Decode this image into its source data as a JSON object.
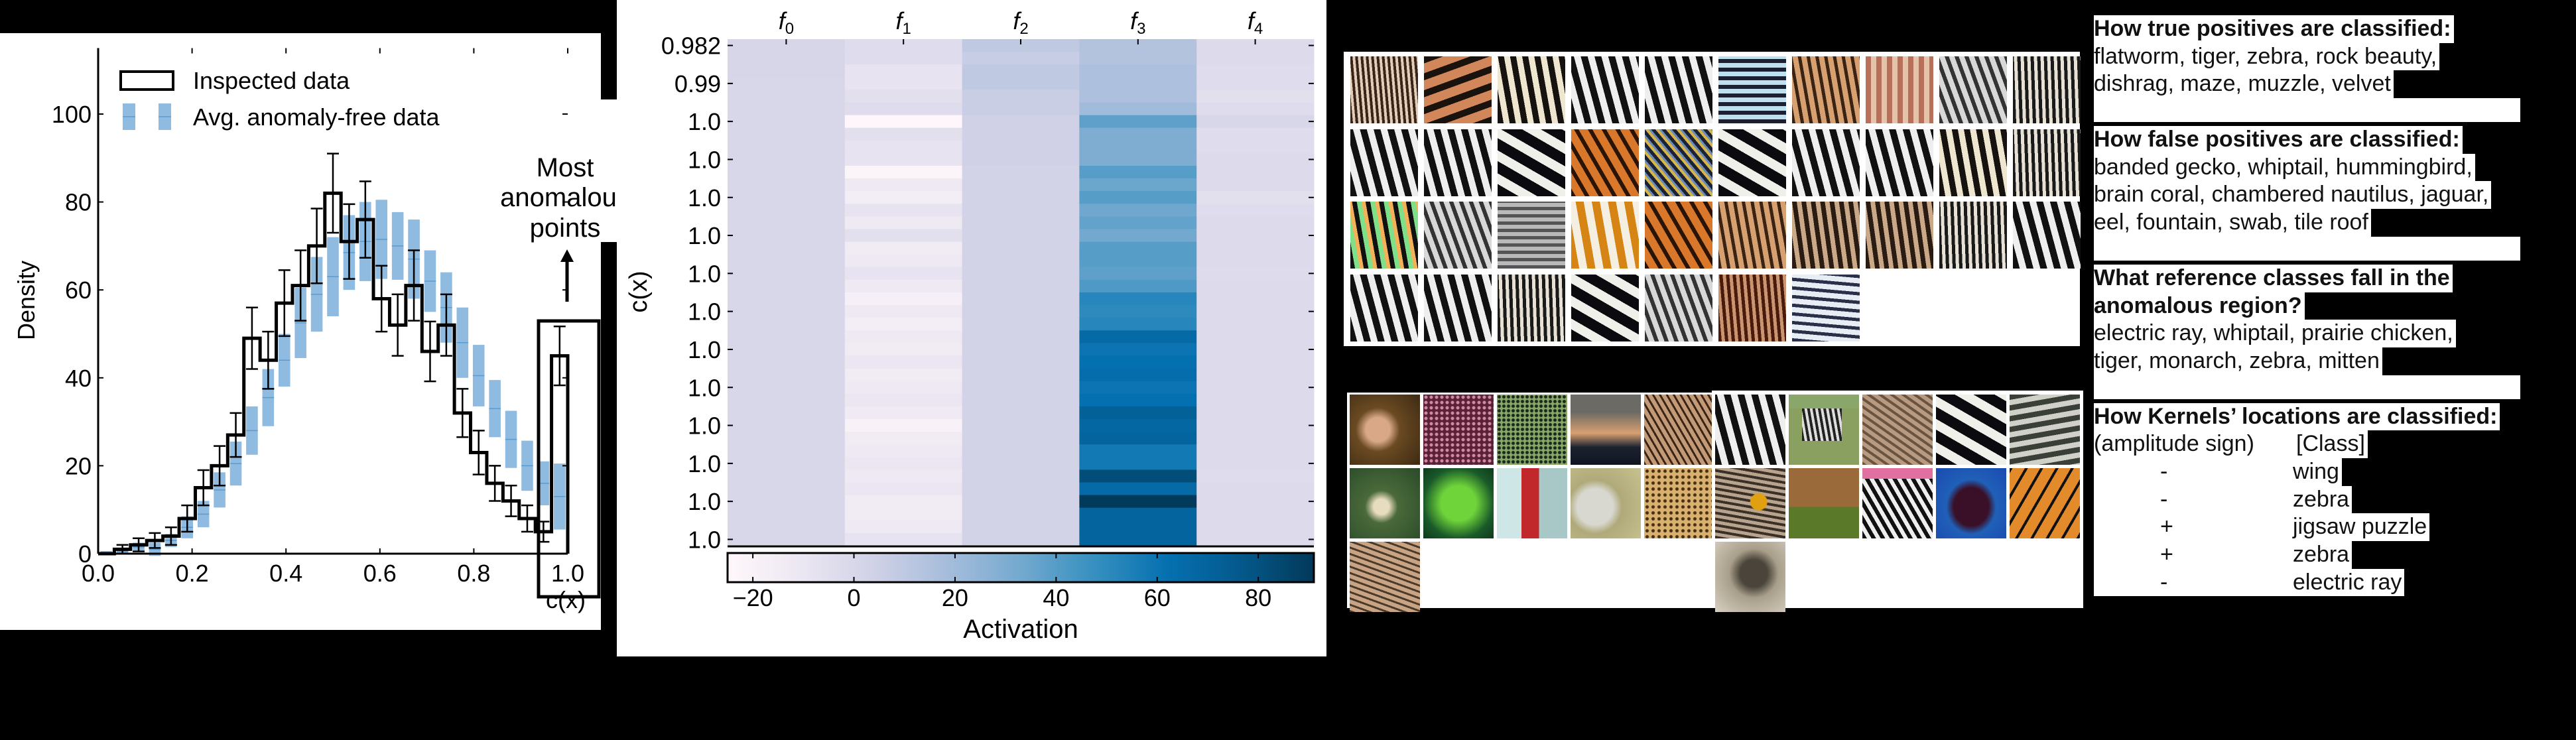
{
  "histogram": {
    "chart_data": {
      "type": "bar",
      "xlabel": "c(x)",
      "ylabel": "Density",
      "xlim": [
        0,
        1.0
      ],
      "ylim": [
        0,
        115
      ],
      "xticks": [
        "0.0",
        "0.2",
        "0.4",
        "0.6",
        "0.8",
        "1.0"
      ],
      "yticks": [
        "0",
        "20",
        "40",
        "60",
        "80",
        "100"
      ],
      "bins": 29,
      "legend_position": "top-left",
      "series": [
        {
          "name": "Inspected data",
          "style": "step",
          "color": "#000000",
          "values": [
            0,
            1,
            2,
            3,
            4,
            8,
            15,
            20,
            27,
            49,
            44,
            57,
            61,
            70,
            82,
            71,
            76,
            58,
            52,
            61,
            46,
            52,
            32,
            23,
            16,
            12,
            8,
            5,
            45
          ],
          "errors": [
            0,
            1,
            1.5,
            1.7,
            2,
            3,
            4,
            4.5,
            5,
            7,
            6.5,
            7.5,
            8,
            8.5,
            9,
            8.5,
            8.7,
            7.5,
            7,
            8,
            6.8,
            7,
            5.5,
            5,
            4,
            3.5,
            3,
            2.3,
            6.7
          ]
        },
        {
          "name": "Avg. anomaly-free data",
          "style": "band",
          "color": "#8fbbe0",
          "values": [
            0.3,
            0.5,
            1.5,
            1,
            3,
            6,
            9,
            14.5,
            20.5,
            28,
            35.5,
            44,
            52.5,
            59,
            63,
            68.5,
            71,
            71.5,
            70,
            67,
            62,
            56,
            48,
            40.5,
            33,
            26,
            20,
            16,
            13
          ],
          "errors": [
            0.3,
            0.5,
            1,
            1.5,
            1.5,
            2.5,
            3,
            4,
            5,
            5.5,
            6.5,
            6,
            8,
            8.5,
            9,
            8.5,
            9,
            9,
            7.7,
            9,
            7,
            8,
            8,
            7,
            6.5,
            6.5,
            5.7,
            5,
            7.5
          ]
        }
      ],
      "annotation": {
        "lines": [
          "Most",
          "anomalous",
          "points"
        ],
        "target_x": 1.0
      }
    }
  },
  "heatmap": {
    "chart_data": {
      "type": "heatmap",
      "ylabel": "c(x)",
      "columns": [
        {
          "base": "f",
          "sub": "0"
        },
        {
          "base": "f",
          "sub": "1"
        },
        {
          "base": "f",
          "sub": "2"
        },
        {
          "base": "f",
          "sub": "3"
        },
        {
          "base": "f",
          "sub": "4"
        }
      ],
      "yticks": [
        "0.982",
        "0.99",
        "1.0",
        "1.0",
        "1.0",
        "1.0",
        "1.0",
        "1.0",
        "1.0",
        "1.0",
        "1.0",
        "1.0",
        "1.0",
        "1.0"
      ],
      "colormap": [
        "#fff7fb",
        "#ece7f2",
        "#d0d1e6",
        "#a6bddb",
        "#74a9cf",
        "#3690c0",
        "#0570b0",
        "#045a8d",
        "#023858"
      ],
      "vmin": -25,
      "vmax": 91,
      "colorbar": {
        "label": "Activation",
        "ticks": [
          "−20",
          "0",
          "20",
          "40",
          "60",
          "80"
        ],
        "tick_values": [
          -20,
          0,
          20,
          40,
          60,
          80
        ]
      },
      "values": [
        [
          1,
          1,
          1,
          0,
          0,
          0,
          0,
          0,
          0,
          0,
          0,
          0,
          0,
          0,
          0,
          0,
          0,
          0,
          0,
          0,
          0,
          0,
          0,
          0,
          0,
          0,
          0,
          0,
          0,
          0,
          0,
          0,
          0,
          0,
          0,
          0,
          0,
          0,
          0,
          0
        ],
        [
          -4,
          -4,
          -8,
          -8,
          -6,
          -4,
          -24,
          -6,
          -8,
          -8,
          -22,
          -12,
          -16,
          -8,
          -12,
          -6,
          -14,
          -12,
          -8,
          -12,
          -18,
          -12,
          -16,
          -12,
          -14,
          -10,
          -14,
          -12,
          -10,
          -13,
          -20,
          -14,
          -12,
          -10,
          -12,
          -10,
          -14,
          -14,
          -12,
          -8
        ],
        [
          10,
          7,
          10,
          10,
          6,
          6,
          4,
          4,
          4,
          4,
          3,
          3,
          3,
          3,
          3,
          3,
          3,
          3,
          3,
          3,
          3,
          3,
          3,
          3,
          3,
          3,
          3,
          3,
          3,
          3,
          3,
          3,
          3,
          3,
          3,
          3,
          3,
          3,
          3,
          3
        ],
        [
          14,
          14,
          16,
          16,
          16,
          20,
          38,
          30,
          30,
          30,
          40,
          35,
          40,
          34,
          37,
          33,
          40,
          40,
          38,
          42,
          52,
          50,
          52,
          66,
          60,
          62,
          64,
          60,
          62,
          72,
          68,
          70,
          58,
          58,
          82,
          66,
          90,
          70,
          70,
          70
        ],
        [
          -2,
          -2,
          -4,
          -4,
          -6,
          -4,
          0,
          -4,
          -4,
          -2,
          -2,
          -2,
          -6,
          -4,
          -2,
          -2,
          -2,
          -2,
          -3,
          -2,
          -2,
          -2,
          -2,
          -2,
          -2,
          -2,
          -2,
          -2,
          -2,
          -2,
          -2,
          -2,
          -2,
          -2,
          -4,
          -2,
          -2,
          -2,
          -2,
          -2
        ]
      ]
    }
  },
  "image_grids": {
    "top": [
      "zebra-mix",
      "tiger-belt",
      "zebra-cream",
      "zebra-bw",
      "zebra-bw",
      "zebra-blue",
      "tiger-tan",
      "candy-stripe",
      "zebra-gray",
      "zebra-fine",
      "zebra-bw",
      "zebra-bw",
      "zebra-bold",
      "tiger",
      "fish-stripe",
      "zebra-bold",
      "zebra-bw",
      "zebra-bw",
      "zebra-cream",
      "zebra-fine",
      "psychedelic",
      "zebra-gray",
      "mesh-gray",
      "orange-white",
      "tiger",
      "tiger-tan",
      "zebra-brown",
      "zebra-brown",
      "zebra-fine",
      "zebra-bw",
      "zebra-bw",
      "zebra-bw",
      "zebra-fine",
      "zebra-bold",
      "zebra-gray",
      "rust",
      "zebra-blue-h"
    ],
    "bottom_left": [
      "gecko",
      "pink-dots",
      "moray",
      "sunset",
      "tan-texture",
      "nautilus",
      "green-coral",
      "feeder",
      "white-coral",
      "leopard",
      "whiptail"
    ],
    "bottom_right": [
      "zebra-bw",
      "zebra-grass",
      "lizard",
      "zebra-bold",
      "mitten",
      "prairie-chicken",
      "tiger-grass",
      "zebra-color",
      "ray",
      "monarch",
      "trilobite"
    ]
  },
  "text_panel": {
    "sections": [
      {
        "heading": [
          "How true positives are classified:"
        ],
        "lines": [
          "flatworm, tiger, zebra, rock beauty,",
          "dishrag, maze, muzzle, velvet"
        ]
      },
      {
        "heading": [
          "How false positives are classified:"
        ],
        "lines": [
          "banded gecko, whiptail, hummingbird,",
          "brain coral, chambered nautilus, jaguar,",
          "eel, fountain, swab, tile roof"
        ]
      },
      {
        "heading": [
          "What reference classes fall in the",
          "anomalous region?"
        ],
        "lines": [
          "electric ray, whiptail, prairie chicken,",
          "tiger, monarch, zebra, mitten"
        ]
      }
    ],
    "kernels": {
      "heading": "How Kernels’ locations are classified:",
      "col_sign": "(amplitude sign)",
      "col_class": "[Class]",
      "rows": [
        {
          "sign": "-",
          "class": "wing"
        },
        {
          "sign": "-",
          "class": "zebra"
        },
        {
          "sign": "+",
          "class": "jigsaw puzzle"
        },
        {
          "sign": "+",
          "class": "zebra"
        },
        {
          "sign": "-",
          "class": "electric ray"
        }
      ]
    }
  }
}
